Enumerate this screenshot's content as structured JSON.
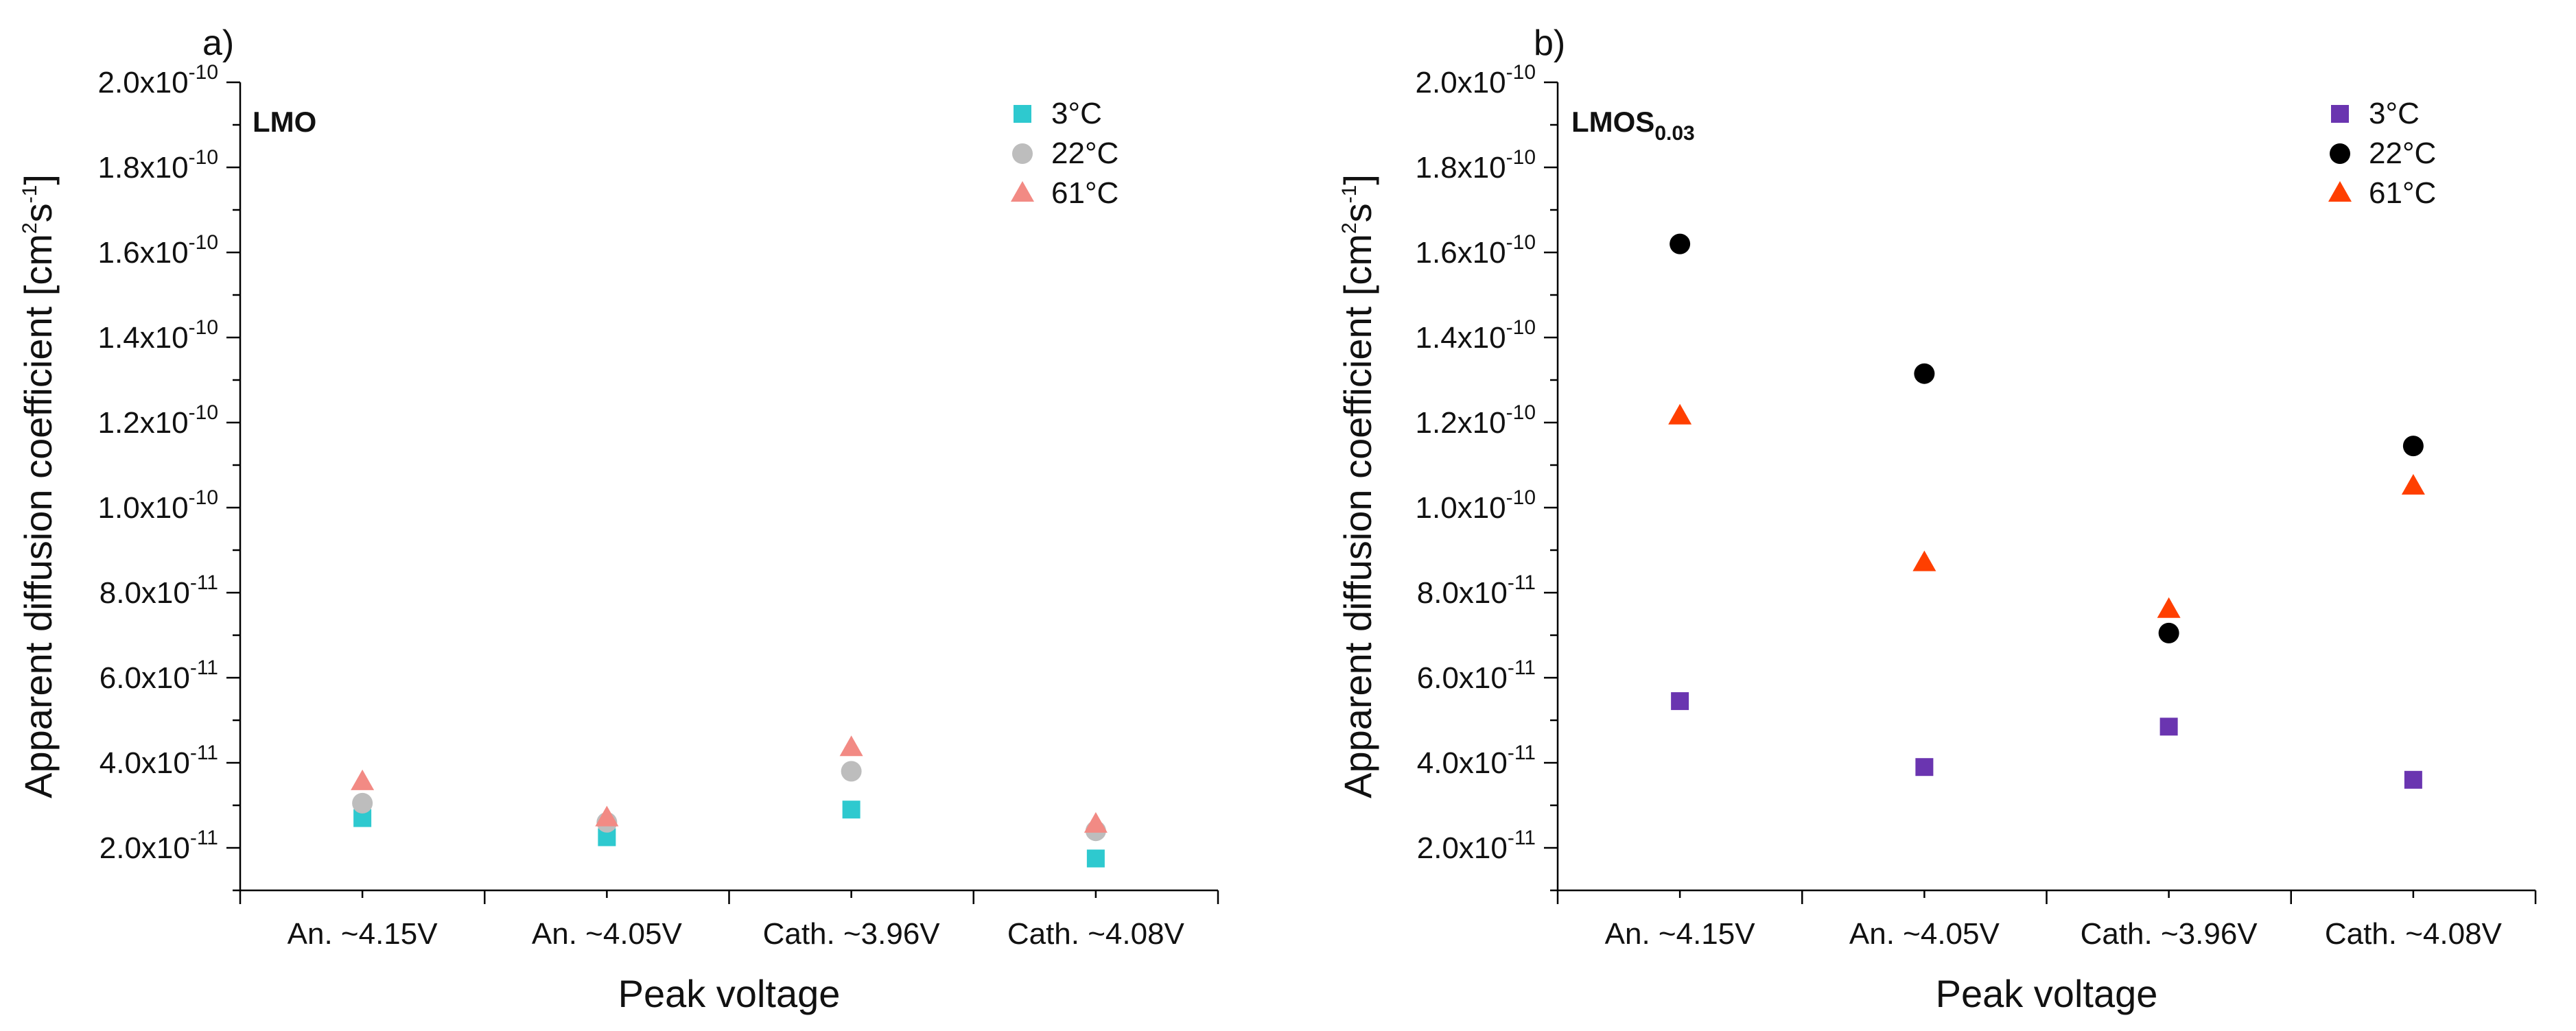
{
  "chart_data": [
    {
      "type": "scatter",
      "panel_label": "a)",
      "title": "LMO",
      "title_subscript": "",
      "xlabel": "Peak voltage",
      "ylabel": "Apparent diffusion coefficient [cm²s⁻¹]",
      "ylabel_parts": {
        "main": "Apparent diffusion coefficient [cm",
        "sup1": "2",
        "mid": "s",
        "sup2": "-1",
        "end": "]"
      },
      "categories": [
        "An. ~4.15V",
        "An. ~4.05V",
        "Cath. ~3.96V",
        "Cath. ~4.08V"
      ],
      "ylim": [
        1e-11,
        2e-10
      ],
      "yticks": [
        {
          "value": 2e-11,
          "mantissa": "2.0x10",
          "exponent": "-11"
        },
        {
          "value": 4e-11,
          "mantissa": "4.0x10",
          "exponent": "-11"
        },
        {
          "value": 6e-11,
          "mantissa": "6.0x10",
          "exponent": "-11"
        },
        {
          "value": 8e-11,
          "mantissa": "8.0x10",
          "exponent": "-11"
        },
        {
          "value": 1e-10,
          "mantissa": "1.0x10",
          "exponent": "-10"
        },
        {
          "value": 1.2e-10,
          "mantissa": "1.2x10",
          "exponent": "-10"
        },
        {
          "value": 1.4e-10,
          "mantissa": "1.4x10",
          "exponent": "-10"
        },
        {
          "value": 1.6e-10,
          "mantissa": "1.6x10",
          "exponent": "-10"
        },
        {
          "value": 1.8e-10,
          "mantissa": "1.8x10",
          "exponent": "-10"
        },
        {
          "value": 2e-10,
          "mantissa": "2.0x10",
          "exponent": "-10"
        }
      ],
      "legend_position": "top-right",
      "series": [
        {
          "name": "3°C",
          "marker": "square",
          "color": "#2ec9cf",
          "values": [
            2.7e-11,
            2.25e-11,
            2.9e-11,
            1.75e-11
          ]
        },
        {
          "name": "22°C",
          "marker": "circle",
          "color": "#bdbdbd",
          "values": [
            3.05e-11,
            2.6e-11,
            3.8e-11,
            2.4e-11
          ]
        },
        {
          "name": "61°C",
          "marker": "triangle",
          "color": "#f28a84",
          "values": [
            3.55e-11,
            2.7e-11,
            4.35e-11,
            2.55e-11
          ]
        }
      ]
    },
    {
      "type": "scatter",
      "panel_label": "b)",
      "title": "LMOS",
      "title_subscript": "0.03",
      "xlabel": "Peak voltage",
      "ylabel": "Apparent diffusion coefficient [cm²s⁻¹]",
      "ylabel_parts": {
        "main": "Apparent diffusion coefficient [cm",
        "sup1": "2",
        "mid": "s",
        "sup2": "-1",
        "end": "]"
      },
      "categories": [
        "An. ~4.15V",
        "An. ~4.05V",
        "Cath. ~3.96V",
        "Cath. ~4.08V"
      ],
      "ylim": [
        1e-11,
        2e-10
      ],
      "yticks": [
        {
          "value": 2e-11,
          "mantissa": "2.0x10",
          "exponent": "-11"
        },
        {
          "value": 4e-11,
          "mantissa": "4.0x10",
          "exponent": "-11"
        },
        {
          "value": 6e-11,
          "mantissa": "6.0x10",
          "exponent": "-11"
        },
        {
          "value": 8e-11,
          "mantissa": "8.0x10",
          "exponent": "-11"
        },
        {
          "value": 1e-10,
          "mantissa": "1.0x10",
          "exponent": "-10"
        },
        {
          "value": 1.2e-10,
          "mantissa": "1.2x10",
          "exponent": "-10"
        },
        {
          "value": 1.4e-10,
          "mantissa": "1.4x10",
          "exponent": "-10"
        },
        {
          "value": 1.6e-10,
          "mantissa": "1.6x10",
          "exponent": "-10"
        },
        {
          "value": 1.8e-10,
          "mantissa": "1.8x10",
          "exponent": "-10"
        },
        {
          "value": 2e-10,
          "mantissa": "2.0x10",
          "exponent": "-10"
        }
      ],
      "legend_position": "top-right",
      "series": [
        {
          "name": "3°C",
          "marker": "square",
          "color": "#6a35b0",
          "values": [
            5.45e-11,
            3.9e-11,
            4.85e-11,
            3.6e-11
          ]
        },
        {
          "name": "22°C",
          "marker": "circle",
          "color": "#000000",
          "values": [
            1.62e-10,
            1.315e-10,
            7.05e-11,
            1.145e-10
          ]
        },
        {
          "name": "61°C",
          "marker": "triangle",
          "color": "#ff3f00",
          "values": [
            1.215e-10,
            8.7e-11,
            7.6e-11,
            1.05e-10
          ]
        }
      ]
    }
  ]
}
